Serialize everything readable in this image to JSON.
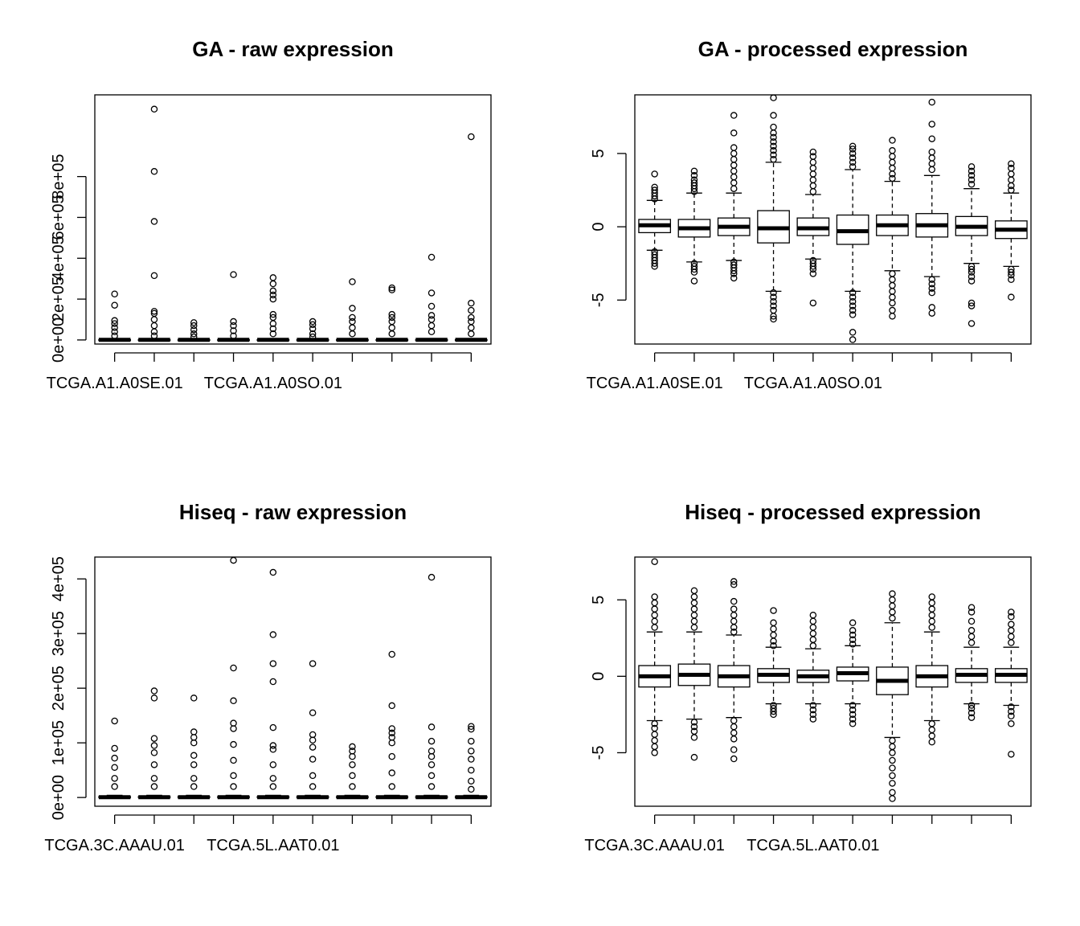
{
  "chart_data": [
    {
      "type": "boxplot",
      "title": "GA - raw expression",
      "xlabel": "",
      "ylabel": "",
      "ylim": [
        -20000,
        1200000
      ],
      "yticks": [
        0,
        200000,
        400000,
        600000,
        800000
      ],
      "ytick_labels": [
        "0e+00",
        "2e+05",
        "4e+05",
        "6e+05",
        "8e+05"
      ],
      "xtick_labels": [
        "TCGA.A1.A0SE.01",
        "",
        "",
        "",
        "TCGA.A1.A0SO.01",
        "",
        "",
        "",
        "",
        ""
      ],
      "boxes": [
        {
          "q1": 0,
          "median": 500,
          "q3": 1500,
          "whisker_low": 0,
          "whisker_high": 4000,
          "outliers": [
            225000,
            170000,
            95000,
            80000,
            60000,
            40000,
            20000
          ]
        },
        {
          "q1": 0,
          "median": 500,
          "q3": 1500,
          "whisker_low": 0,
          "whisker_high": 4000,
          "outliers": [
            1130000,
            825000,
            580000,
            315000,
            140000,
            130000,
            100000,
            70000,
            40000,
            20000
          ]
        },
        {
          "q1": 0,
          "median": 500,
          "q3": 1500,
          "whisker_low": 0,
          "whisker_high": 4000,
          "outliers": [
            85000,
            70000,
            50000,
            30000,
            15000
          ]
        },
        {
          "q1": 0,
          "median": 500,
          "q3": 1500,
          "whisker_low": 0,
          "whisker_high": 4000,
          "outliers": [
            320000,
            90000,
            70000,
            45000,
            20000
          ]
        },
        {
          "q1": 0,
          "median": 500,
          "q3": 1500,
          "whisker_low": 0,
          "whisker_high": 4000,
          "outliers": [
            305000,
            275000,
            240000,
            220000,
            200000,
            125000,
            110000,
            80000,
            55000,
            30000
          ]
        },
        {
          "q1": 0,
          "median": 500,
          "q3": 1500,
          "whisker_low": 0,
          "whisker_high": 4000,
          "outliers": [
            90000,
            75000,
            55000,
            30000,
            15000
          ]
        },
        {
          "q1": 0,
          "median": 500,
          "q3": 1500,
          "whisker_low": 0,
          "whisker_high": 4000,
          "outliers": [
            285000,
            155000,
            110000,
            90000,
            60000,
            30000
          ]
        },
        {
          "q1": 0,
          "median": 500,
          "q3": 1500,
          "whisker_low": 0,
          "whisker_high": 4000,
          "outliers": [
            255000,
            245000,
            125000,
            110000,
            90000,
            60000,
            30000
          ]
        },
        {
          "q1": 0,
          "median": 500,
          "q3": 1500,
          "whisker_low": 0,
          "whisker_high": 4000,
          "outliers": [
            405000,
            230000,
            165000,
            120000,
            100000,
            70000,
            40000
          ]
        },
        {
          "q1": 0,
          "median": 500,
          "q3": 1500,
          "whisker_low": 0,
          "whisker_high": 4000,
          "outliers": [
            995000,
            180000,
            145000,
            110000,
            90000,
            60000,
            30000
          ]
        }
      ]
    },
    {
      "type": "boxplot",
      "title": "GA - processed expression",
      "xlabel": "",
      "ylabel": "",
      "ylim": [
        -8,
        9
      ],
      "yticks": [
        -5,
        0,
        5
      ],
      "ytick_labels": [
        "-5",
        "0",
        "5"
      ],
      "xtick_labels": [
        "TCGA.A1.A0SE.01",
        "",
        "",
        "",
        "TCGA.A1.A0SO.01",
        "",
        "",
        "",
        "",
        ""
      ],
      "boxes": [
        {
          "q1": -0.4,
          "median": 0.1,
          "q3": 0.5,
          "whisker_low": -1.6,
          "whisker_high": 1.8,
          "outliers": [
            3.6,
            2.7,
            2.5,
            2.3,
            2.1,
            1.9,
            -1.7,
            -1.9,
            -2.1,
            -2.3,
            -2.5,
            -2.7
          ]
        },
        {
          "q1": -0.7,
          "median": -0.1,
          "q3": 0.5,
          "whisker_low": -2.4,
          "whisker_high": 2.3,
          "outliers": [
            3.8,
            3.5,
            3.2,
            3.0,
            2.8,
            2.6,
            2.4,
            -2.5,
            -2.7,
            -2.9,
            -3.1,
            -3.7
          ]
        },
        {
          "q1": -0.6,
          "median": 0.0,
          "q3": 0.6,
          "whisker_low": -2.3,
          "whisker_high": 2.3,
          "outliers": [
            7.6,
            6.4,
            5.4,
            5.0,
            4.6,
            4.2,
            3.8,
            3.4,
            3.0,
            2.6,
            -2.4,
            -2.6,
            -2.8,
            -3.0,
            -3.2,
            -3.5
          ]
        },
        {
          "q1": -1.1,
          "median": -0.1,
          "q3": 1.1,
          "whisker_low": -4.4,
          "whisker_high": 4.4,
          "outliers": [
            8.8,
            7.6,
            6.8,
            6.4,
            6.1,
            5.8,
            5.5,
            5.2,
            4.9,
            4.6,
            -4.5,
            -4.8,
            -5.1,
            -5.4,
            -5.7,
            -6.1,
            -6.3
          ]
        },
        {
          "q1": -0.6,
          "median": -0.1,
          "q3": 0.6,
          "whisker_low": -2.2,
          "whisker_high": 2.2,
          "outliers": [
            5.1,
            4.8,
            4.4,
            4.0,
            3.6,
            3.2,
            2.8,
            2.4,
            -2.3,
            -2.5,
            -2.7,
            -2.9,
            -3.2,
            -5.2
          ]
        },
        {
          "q1": -1.2,
          "median": -0.3,
          "q3": 0.8,
          "whisker_low": -4.4,
          "whisker_high": 3.9,
          "outliers": [
            5.5,
            5.3,
            5.0,
            4.7,
            4.4,
            4.1,
            -4.5,
            -4.8,
            -5.1,
            -5.4,
            -5.7,
            -6.0,
            -7.2,
            -7.7
          ]
        },
        {
          "q1": -0.6,
          "median": 0.1,
          "q3": 0.8,
          "whisker_low": -3.0,
          "whisker_high": 3.1,
          "outliers": [
            5.9,
            5.2,
            4.8,
            4.4,
            4.0,
            3.6,
            3.3,
            -3.2,
            -3.6,
            -4.0,
            -4.4,
            -4.8,
            -5.2,
            -5.7,
            -6.1
          ]
        },
        {
          "q1": -0.7,
          "median": 0.1,
          "q3": 0.9,
          "whisker_low": -3.4,
          "whisker_high": 3.5,
          "outliers": [
            8.5,
            7.0,
            6.0,
            5.1,
            4.7,
            4.3,
            3.9,
            -3.6,
            -3.9,
            -4.2,
            -4.5,
            -5.5,
            -5.9
          ]
        },
        {
          "q1": -0.6,
          "median": 0.0,
          "q3": 0.7,
          "whisker_low": -2.5,
          "whisker_high": 2.6,
          "outliers": [
            4.1,
            3.8,
            3.5,
            3.2,
            2.9,
            -2.7,
            -2.9,
            -3.1,
            -3.4,
            -3.7,
            -5.2,
            -5.4,
            -6.6
          ]
        },
        {
          "q1": -0.8,
          "median": -0.2,
          "q3": 0.4,
          "whisker_low": -2.7,
          "whisker_high": 2.3,
          "outliers": [
            4.3,
            4.0,
            3.6,
            3.2,
            2.8,
            2.5,
            -2.9,
            -3.1,
            -3.3,
            -3.6,
            -4.8
          ]
        }
      ]
    },
    {
      "type": "boxplot",
      "title": "Hiseq - raw expression",
      "xlabel": "",
      "ylabel": "",
      "ylim": [
        -16000,
        440000
      ],
      "yticks": [
        0,
        100000,
        200000,
        300000,
        400000
      ],
      "ytick_labels": [
        "0e+00",
        "1e+05",
        "2e+05",
        "3e+05",
        "4e+05"
      ],
      "xtick_labels": [
        "TCGA.3C.AAAU.01",
        "",
        "",
        "",
        "TCGA.5L.AAT0.01",
        "",
        "",
        "",
        "",
        ""
      ],
      "boxes": [
        {
          "q1": 0,
          "median": 500,
          "q3": 1500,
          "whisker_low": 0,
          "whisker_high": 4000,
          "outliers": [
            140000,
            90000,
            72000,
            55000,
            35000,
            20000
          ]
        },
        {
          "q1": 0,
          "median": 500,
          "q3": 1500,
          "whisker_low": 0,
          "whisker_high": 4000,
          "outliers": [
            195000,
            182000,
            108000,
            95000,
            82000,
            60000,
            35000,
            20000
          ]
        },
        {
          "q1": 0,
          "median": 500,
          "q3": 1500,
          "whisker_low": 0,
          "whisker_high": 4000,
          "outliers": [
            182000,
            120000,
            110000,
            100000,
            77000,
            60000,
            35000,
            20000
          ]
        },
        {
          "q1": 0,
          "median": 500,
          "q3": 1500,
          "whisker_low": 0,
          "whisker_high": 4000,
          "outliers": [
            434000,
            237000,
            177000,
            136000,
            126000,
            97000,
            68000,
            40000,
            20000
          ]
        },
        {
          "q1": 0,
          "median": 500,
          "q3": 1500,
          "whisker_low": 0,
          "whisker_high": 4000,
          "outliers": [
            412000,
            298000,
            245000,
            212000,
            128000,
            95000,
            88000,
            60000,
            35000,
            20000
          ]
        },
        {
          "q1": 0,
          "median": 500,
          "q3": 1500,
          "whisker_low": 0,
          "whisker_high": 4000,
          "outliers": [
            245000,
            155000,
            115000,
            105000,
            92000,
            70000,
            40000,
            20000
          ]
        },
        {
          "q1": 0,
          "median": 500,
          "q3": 1500,
          "whisker_low": 0,
          "whisker_high": 4000,
          "outliers": [
            93000,
            85000,
            75000,
            60000,
            40000,
            20000
          ]
        },
        {
          "q1": 0,
          "median": 500,
          "q3": 1500,
          "whisker_low": 0,
          "whisker_high": 4000,
          "outliers": [
            262000,
            168000,
            126000,
            118000,
            110000,
            100000,
            75000,
            45000,
            20000
          ]
        },
        {
          "q1": 0,
          "median": 500,
          "q3": 1500,
          "whisker_low": 0,
          "whisker_high": 4000,
          "outliers": [
            403000,
            129000,
            103000,
            85000,
            75000,
            60000,
            40000,
            20000
          ]
        },
        {
          "q1": 0,
          "median": 500,
          "q3": 1500,
          "whisker_low": 0,
          "whisker_high": 4000,
          "outliers": [
            130000,
            125000,
            103000,
            85000,
            70000,
            50000,
            30000,
            15000
          ]
        }
      ]
    },
    {
      "type": "boxplot",
      "title": "Hiseq - processed expression",
      "xlabel": "",
      "ylabel": "",
      "ylim": [
        -8.5,
        7.8
      ],
      "yticks": [
        -5,
        0,
        5
      ],
      "ytick_labels": [
        "-5",
        "0",
        "5"
      ],
      "xtick_labels": [
        "TCGA.3C.AAAU.01",
        "",
        "",
        "",
        "TCGA.5L.AAT0.01",
        "",
        "",
        "",
        "",
        ""
      ],
      "boxes": [
        {
          "q1": -0.7,
          "median": 0.0,
          "q3": 0.7,
          "whisker_low": -2.9,
          "whisker_high": 2.9,
          "outliers": [
            7.5,
            5.2,
            4.8,
            4.4,
            4.0,
            3.6,
            3.2,
            -3.1,
            -3.4,
            -3.8,
            -4.2,
            -4.6,
            -5.0
          ]
        },
        {
          "q1": -0.6,
          "median": 0.1,
          "q3": 0.8,
          "whisker_low": -2.8,
          "whisker_high": 2.9,
          "outliers": [
            5.6,
            5.2,
            4.8,
            4.4,
            4.0,
            3.6,
            3.2,
            -3.0,
            -3.3,
            -3.6,
            -4.0,
            -5.3
          ]
        },
        {
          "q1": -0.7,
          "median": 0.0,
          "q3": 0.7,
          "whisker_low": -2.7,
          "whisker_high": 2.7,
          "outliers": [
            6.2,
            6.0,
            4.9,
            4.4,
            4.0,
            3.6,
            3.2,
            2.9,
            -2.9,
            -3.3,
            -3.7,
            -4.1,
            -4.8,
            -5.4
          ]
        },
        {
          "q1": -0.4,
          "median": 0.1,
          "q3": 0.5,
          "whisker_low": -1.8,
          "whisker_high": 1.9,
          "outliers": [
            4.3,
            3.5,
            3.1,
            2.7,
            2.3,
            2.0,
            -1.9,
            -2.1,
            -2.3,
            -2.5
          ]
        },
        {
          "q1": -0.4,
          "median": 0.0,
          "q3": 0.4,
          "whisker_low": -1.8,
          "whisker_high": 1.8,
          "outliers": [
            4.0,
            3.6,
            3.2,
            2.8,
            2.4,
            2.0,
            -1.9,
            -2.2,
            -2.5,
            -2.8
          ]
        },
        {
          "q1": -0.3,
          "median": 0.2,
          "q3": 0.6,
          "whisker_low": -1.8,
          "whisker_high": 2.0,
          "outliers": [
            3.5,
            3.0,
            2.7,
            2.4,
            2.1,
            -1.9,
            -2.2,
            -2.5,
            -2.8,
            -3.1
          ]
        },
        {
          "q1": -1.2,
          "median": -0.3,
          "q3": 0.6,
          "whisker_low": -4.0,
          "whisker_high": 3.5,
          "outliers": [
            5.4,
            5.0,
            4.6,
            4.2,
            3.8,
            -4.2,
            -4.6,
            -5.0,
            -5.5,
            -6.0,
            -6.5,
            -7.0,
            -7.6,
            -8.0
          ]
        },
        {
          "q1": -0.7,
          "median": 0.0,
          "q3": 0.7,
          "whisker_low": -2.9,
          "whisker_high": 2.9,
          "outliers": [
            5.2,
            4.8,
            4.4,
            4.0,
            3.6,
            3.2,
            -3.1,
            -3.5,
            -3.9,
            -4.3
          ]
        },
        {
          "q1": -0.4,
          "median": 0.1,
          "q3": 0.5,
          "whisker_low": -1.8,
          "whisker_high": 1.9,
          "outliers": [
            4.5,
            4.2,
            3.6,
            3.0,
            2.6,
            2.2,
            -1.9,
            -2.1,
            -2.4,
            -2.7
          ]
        },
        {
          "q1": -0.4,
          "median": 0.1,
          "q3": 0.5,
          "whisker_low": -1.9,
          "whisker_high": 1.9,
          "outliers": [
            4.2,
            3.9,
            3.4,
            3.0,
            2.6,
            2.2,
            -2.0,
            -2.3,
            -2.6,
            -3.1,
            -5.1
          ]
        }
      ]
    }
  ]
}
